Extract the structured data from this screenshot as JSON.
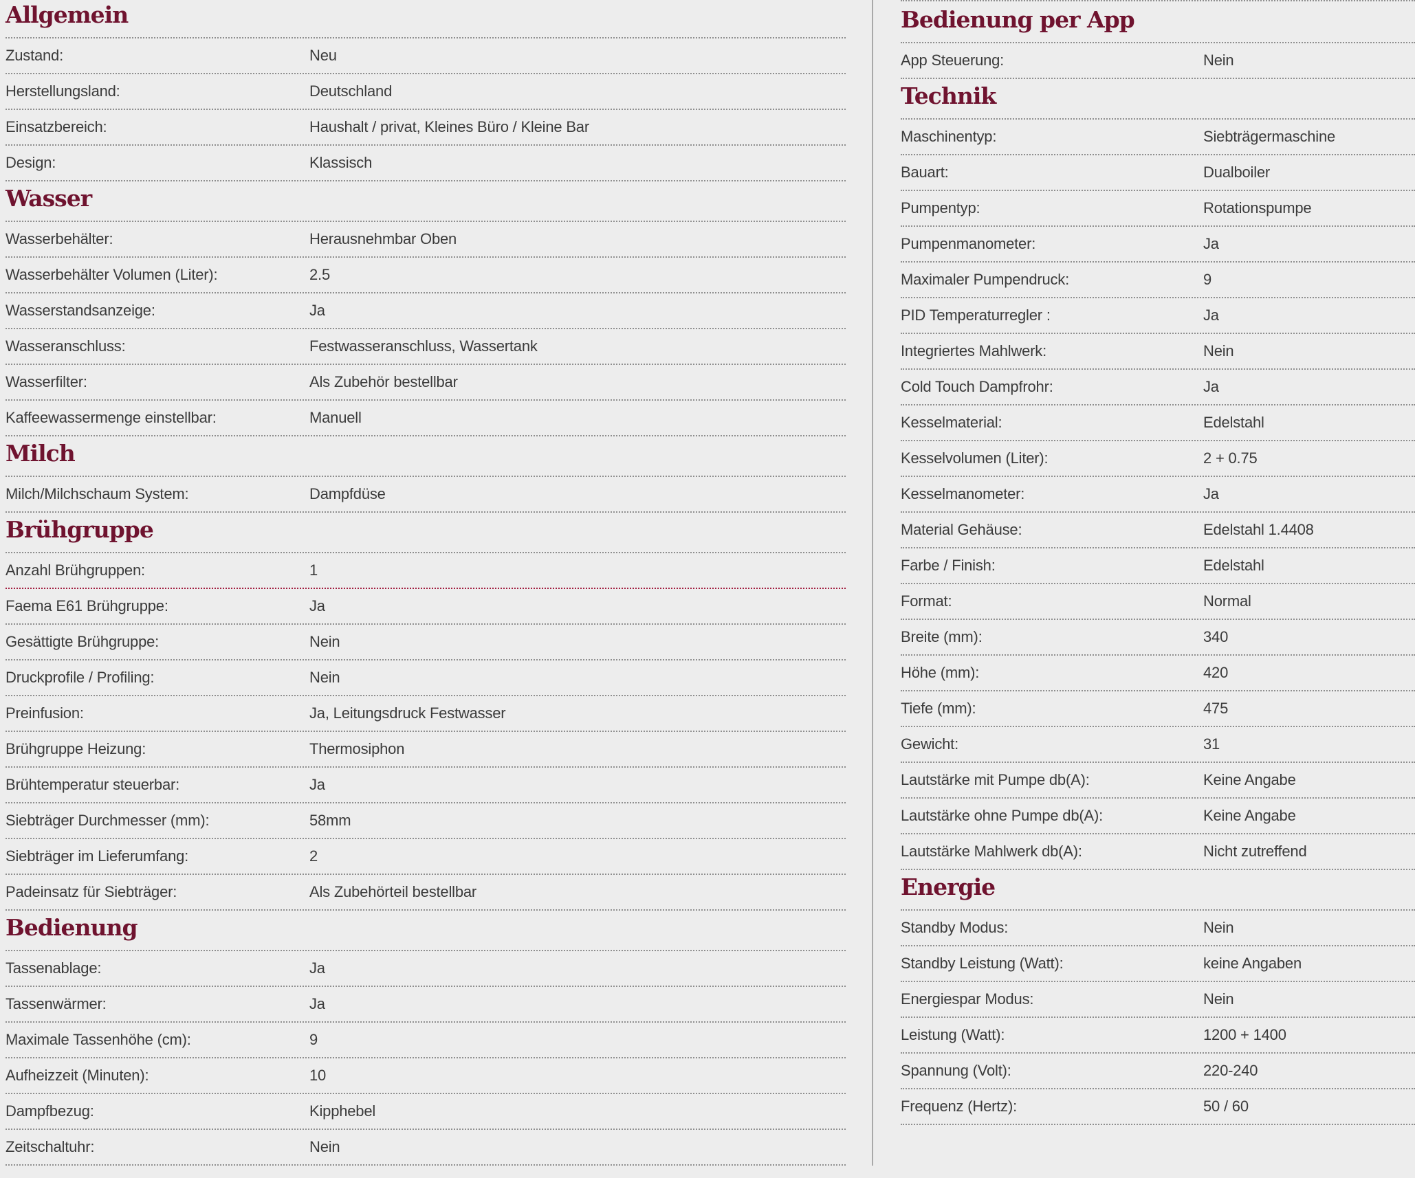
{
  "page": {
    "background_color": "#EDEDED",
    "heading_color": "#6F132F",
    "text_color": "#3B3B3B",
    "divider_dotted_color": "#8E8E8E",
    "accent_divider_color": "#A21E40",
    "column_divider_color": "#A9A9A9"
  },
  "columns": [
    {
      "sections": [
        {
          "title": "Allgemein",
          "rows": [
            {
              "label": "Zustand:",
              "value": "Neu"
            },
            {
              "label": "Herstellungsland:",
              "value": "Deutschland"
            },
            {
              "label": "Einsatzbereich:",
              "value": "Haushalt / privat, Kleines Büro / Kleine Bar"
            },
            {
              "label": "Design:",
              "value": "Klassisch"
            }
          ]
        },
        {
          "title": "Wasser",
          "rows": [
            {
              "label": "Wasserbehälter:",
              "value": "Herausnehmbar Oben"
            },
            {
              "label": "Wasserbehälter Volumen (Liter):",
              "value": "2.5"
            },
            {
              "label": "Wasserstandsanzeige:",
              "value": "Ja"
            },
            {
              "label": "Wasseranschluss:",
              "value": "Festwasseranschluss, Wassertank"
            },
            {
              "label": "Wasserfilter:",
              "value": "Als Zubehör bestellbar"
            },
            {
              "label": "Kaffeewassermenge einstellbar:",
              "value": "Manuell"
            }
          ]
        },
        {
          "title": "Milch",
          "rows": [
            {
              "label": "Milch/Milchschaum System:",
              "value": "Dampfdüse"
            }
          ]
        },
        {
          "title": "Brühgruppe",
          "rows": [
            {
              "label": "Anzahl Brühgruppen:",
              "value": "1",
              "accent": true
            },
            {
              "label": "Faema E61 Brühgruppe:",
              "value": "Ja"
            },
            {
              "label": "Gesättigte Brühgruppe:",
              "value": "Nein"
            },
            {
              "label": "Druckprofile / Profiling:",
              "value": "Nein"
            },
            {
              "label": "Preinfusion:",
              "value": "Ja, Leitungsdruck Festwasser"
            },
            {
              "label": "Brühgruppe Heizung:",
              "value": "Thermosiphon"
            },
            {
              "label": "Brühtemperatur steuerbar:",
              "value": "Ja"
            },
            {
              "label": "Siebträger Durchmesser (mm):",
              "value": "58mm"
            },
            {
              "label": "Siebträger im Lieferumfang:",
              "value": "2"
            },
            {
              "label": "Padeinsatz für Siebträger:",
              "value": "Als Zubehörteil bestellbar"
            }
          ]
        },
        {
          "title": "Bedienung",
          "rows": [
            {
              "label": "Tassenablage:",
              "value": "Ja"
            },
            {
              "label": "Tassenwärmer:",
              "value": "Ja"
            },
            {
              "label": "Maximale Tassenhöhe (cm):",
              "value": "9"
            },
            {
              "label": "Aufheizzeit (Minuten):",
              "value": "10"
            },
            {
              "label": "Dampfbezug:",
              "value": "Kipphebel"
            },
            {
              "label": "Zeitschaltuhr:",
              "value": "Nein"
            }
          ]
        }
      ]
    },
    {
      "sections": [
        {
          "title": "Bedienung per App",
          "rows": [
            {
              "label": "App Steuerung:",
              "value": "Nein"
            }
          ]
        },
        {
          "title": "Technik",
          "rows": [
            {
              "label": "Maschinentyp:",
              "value": "Siebträgermaschine"
            },
            {
              "label": "Bauart:",
              "value": "Dualboiler"
            },
            {
              "label": "Pumpentyp:",
              "value": "Rotationspumpe"
            },
            {
              "label": "Pumpenmanometer:",
              "value": "Ja"
            },
            {
              "label": "Maximaler Pumpendruck:",
              "value": "9"
            },
            {
              "label": "PID Temperaturregler :",
              "value": "Ja"
            },
            {
              "label": "Integriertes Mahlwerk:",
              "value": "Nein"
            },
            {
              "label": "Cold Touch Dampfrohr:",
              "value": "Ja"
            },
            {
              "label": "Kesselmaterial:",
              "value": "Edelstahl"
            },
            {
              "label": "Kesselvolumen (Liter):",
              "value": "2 + 0.75"
            },
            {
              "label": "Kesselmanometer:",
              "value": "Ja"
            },
            {
              "label": "Material Gehäuse:",
              "value": "Edelstahl 1.4408"
            },
            {
              "label": "Farbe / Finish:",
              "value": "Edelstahl"
            },
            {
              "label": "Format:",
              "value": "Normal"
            },
            {
              "label": "Breite (mm):",
              "value": "340"
            },
            {
              "label": "Höhe (mm):",
              "value": "420"
            },
            {
              "label": "Tiefe (mm):",
              "value": "475"
            },
            {
              "label": "Gewicht:",
              "value": "31"
            },
            {
              "label": "Lautstärke mit Pumpe db(A):",
              "value": "Keine Angabe"
            },
            {
              "label": "Lautstärke ohne Pumpe db(A):",
              "value": "Keine Angabe"
            },
            {
              "label": "Lautstärke Mahlwerk db(A):",
              "value": "Nicht zutreffend"
            }
          ]
        },
        {
          "title": "Energie",
          "rows": [
            {
              "label": "Standby Modus:",
              "value": "Nein"
            },
            {
              "label": "Standby Leistung (Watt):",
              "value": "keine Angaben"
            },
            {
              "label": "Energiespar Modus:",
              "value": "Nein"
            },
            {
              "label": "Leistung (Watt):",
              "value": "1200 + 1400"
            },
            {
              "label": "Spannung (Volt):",
              "value": "220-240"
            },
            {
              "label": "Frequenz (Hertz):",
              "value": "50 / 60"
            }
          ]
        }
      ]
    }
  ]
}
